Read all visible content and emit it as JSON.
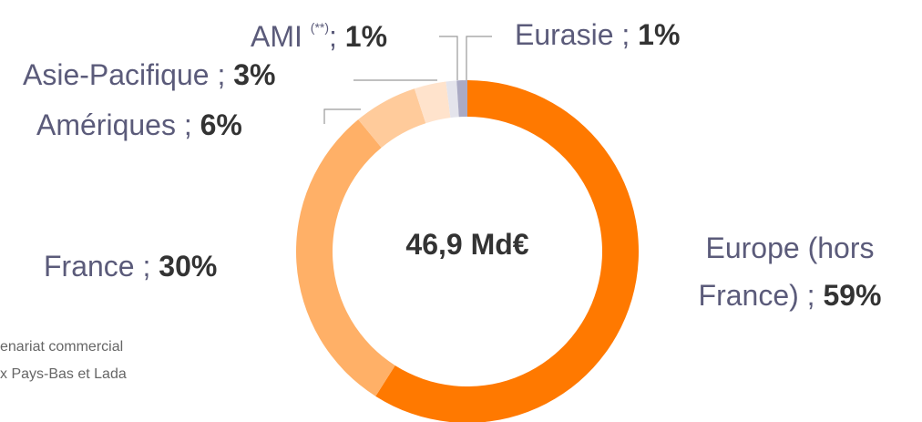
{
  "chart_data": {
    "type": "donut",
    "center_label": "46,9 Md€",
    "categories": [
      "Europe (hors France)",
      "France",
      "Amériques",
      "Asie-Pacifique",
      "AMI",
      "Eurasie"
    ],
    "values": [
      59,
      30,
      6,
      3,
      1,
      1
    ],
    "value_labels": [
      "59%",
      "30%",
      "6%",
      "3%",
      "1%",
      "1%"
    ],
    "separators": [
      " ; ",
      " ; ",
      " ; ",
      " ; ",
      "; ",
      " ; "
    ],
    "category_notes": [
      null,
      null,
      null,
      null,
      "(**)",
      null
    ],
    "colors": [
      "#ff7900",
      "#ffb067",
      "#ffcb9b",
      "#ffe3cc",
      "#e4e4ec",
      "#aaaac4"
    ],
    "footnotes": [
      "enariat commercial",
      "x Pays-Bas et Lada"
    ]
  }
}
